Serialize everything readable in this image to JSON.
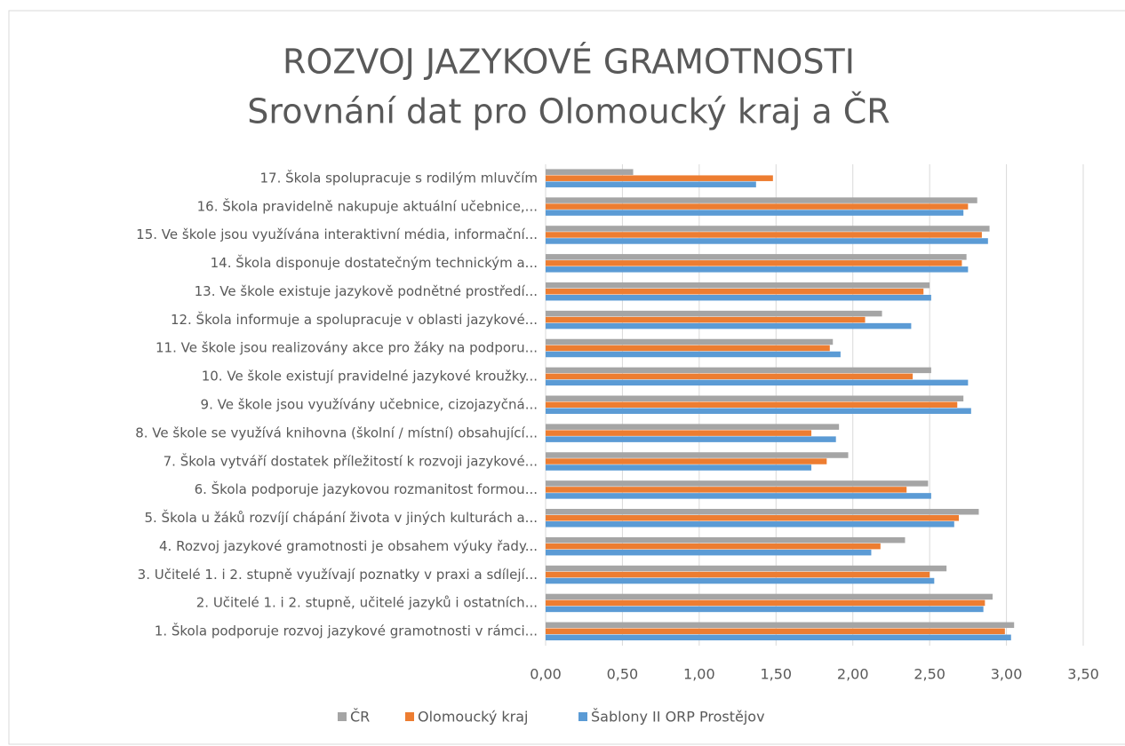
{
  "chart_data": {
    "type": "hbar",
    "title": "ROZVOJ JAZYKOVÉ GRAMOTNOSTI",
    "subtitle": "Srovnání dat pro Olomoucký kraj a ČR",
    "categories": [
      "1. Škola podporuje rozvoj jazykové gramotnosti v rámci...",
      "2. Učitelé 1. i 2. stupně, učitelé jazyků i ostatních...",
      "3. Učitelé 1. i 2. stupně využívají poznatky v praxi a sdílejí...",
      "4. Rozvoj jazykové gramotnosti je obsahem výuky řady...",
      "5. Škola u žáků rozvíjí chápání života v jiných kulturách a...",
      "6. Škola podporuje jazykovou rozmanitost formou...",
      "7. Škola vytváří dostatek příležitostí k rozvoji jazykové...",
      "8. Ve škole se využívá knihovna (školní / místní) obsahující...",
      "9. Ve škole jsou využívány učebnice, cizojazyčná...",
      "10. Ve škole existují pravidelné jazykové kroužky...",
      "11. Ve škole jsou realizovány akce pro žáky na podporu...",
      "12. Škola informuje a spolupracuje v oblasti jazykové...",
      "13. Ve škole existuje jazykově podnětné prostředí...",
      "14. Škola disponuje dostatečným technickým a...",
      "15. Ve škole jsou využívána interaktivní média, informační...",
      "16. Škola pravidelně nakupuje aktuální učebnice,...",
      "17. Škola spolupracuje s rodilým mluvčím"
    ],
    "series": [
      {
        "name": "ČR",
        "color": "#a5a5a5",
        "values": [
          3.05,
          2.91,
          2.61,
          2.34,
          2.82,
          2.49,
          1.97,
          1.91,
          2.72,
          2.51,
          1.87,
          2.19,
          2.5,
          2.74,
          2.89,
          2.81,
          0.57
        ]
      },
      {
        "name": "Olomoucký kraj",
        "color": "#ed7d31",
        "values": [
          2.99,
          2.86,
          2.5,
          2.18,
          2.69,
          2.35,
          1.83,
          1.73,
          2.68,
          2.39,
          1.85,
          2.08,
          2.46,
          2.71,
          2.84,
          2.75,
          1.48
        ]
      },
      {
        "name": "Šablony II ORP Prostějov",
        "color": "#5b9bd5",
        "values": [
          3.03,
          2.85,
          2.53,
          2.12,
          2.66,
          2.51,
          1.73,
          1.89,
          2.77,
          2.75,
          1.92,
          2.38,
          2.51,
          2.75,
          2.88,
          2.72,
          1.37
        ]
      }
    ],
    "xlim": [
      0,
      3.5
    ],
    "xticks": [
      {
        "value": 0,
        "label": "0,00"
      },
      {
        "value": 0.5,
        "label": "0,50"
      },
      {
        "value": 1,
        "label": "1,00"
      },
      {
        "value": 1.5,
        "label": "1,50"
      },
      {
        "value": 2,
        "label": "2,00"
      },
      {
        "value": 2.5,
        "label": "2,50"
      },
      {
        "value": 3,
        "label": "3,00"
      },
      {
        "value": 3.5,
        "label": "3,50"
      }
    ],
    "grid": true
  }
}
